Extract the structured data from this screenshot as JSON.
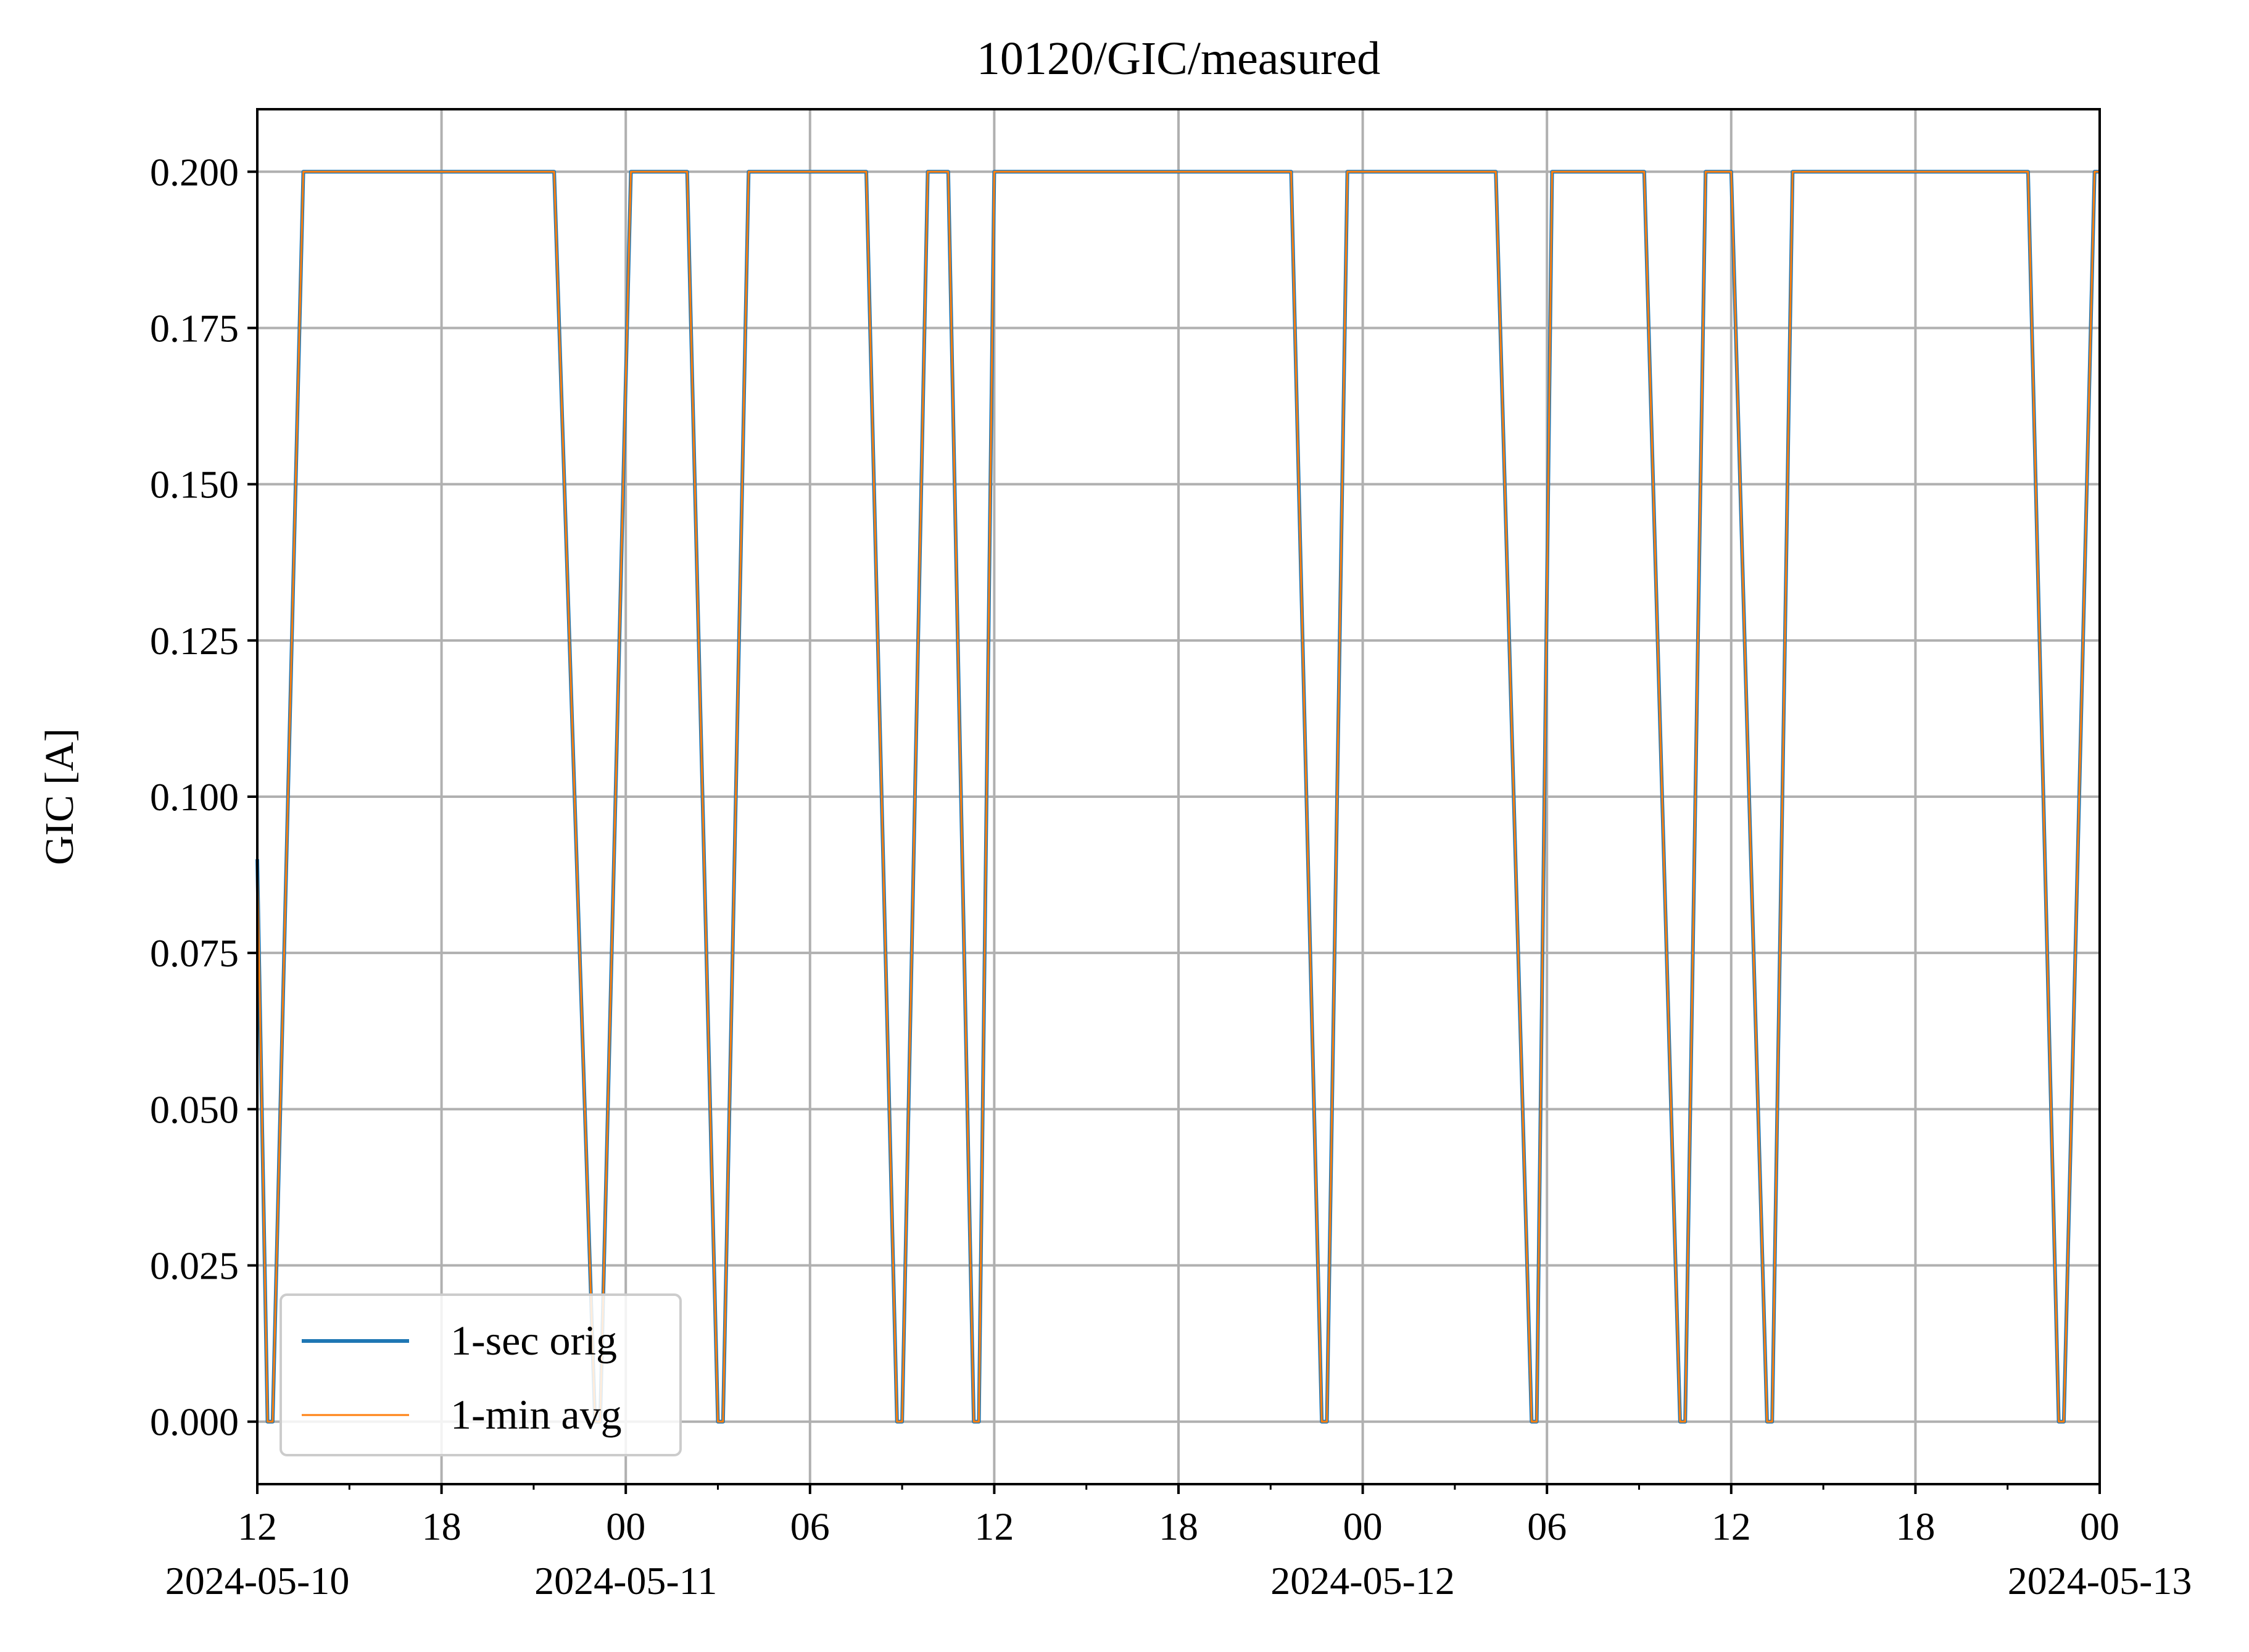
{
  "chart_data": {
    "type": "line",
    "title": "10120/GIC/measured",
    "xlabel": "",
    "ylabel": "GIC [A]",
    "x_range": [
      "2024-05-10T12:00",
      "2024-05-13T00:00"
    ],
    "ylim": [
      -0.01,
      0.21
    ],
    "grid": true,
    "legend_position": "lower-left",
    "y_ticks": [
      {
        "value": 0.0,
        "label": "0.000"
      },
      {
        "value": 0.025,
        "label": "0.025"
      },
      {
        "value": 0.05,
        "label": "0.050"
      },
      {
        "value": 0.075,
        "label": "0.075"
      },
      {
        "value": 0.1,
        "label": "0.100"
      },
      {
        "value": 0.125,
        "label": "0.125"
      },
      {
        "value": 0.15,
        "label": "0.150"
      },
      {
        "value": 0.175,
        "label": "0.175"
      },
      {
        "value": 0.2,
        "label": "0.200"
      }
    ],
    "x_ticks": [
      {
        "value": "2024-05-10T12:00",
        "label": "12",
        "date": "2024-05-10"
      },
      {
        "value": "2024-05-10T18:00",
        "label": "18",
        "date": ""
      },
      {
        "value": "2024-05-11T00:00",
        "label": "00",
        "date": "2024-05-11"
      },
      {
        "value": "2024-05-11T06:00",
        "label": "06",
        "date": ""
      },
      {
        "value": "2024-05-11T12:00",
        "label": "12",
        "date": ""
      },
      {
        "value": "2024-05-11T18:00",
        "label": "18",
        "date": ""
      },
      {
        "value": "2024-05-12T00:00",
        "label": "00",
        "date": "2024-05-12"
      },
      {
        "value": "2024-05-12T06:00",
        "label": "06",
        "date": ""
      },
      {
        "value": "2024-05-12T12:00",
        "label": "12",
        "date": ""
      },
      {
        "value": "2024-05-12T18:00",
        "label": "18",
        "date": ""
      },
      {
        "value": "2024-05-13T00:00",
        "label": "00",
        "date": "2024-05-13"
      }
    ],
    "minor_x_ticks": [
      "2024-05-10T15:00",
      "2024-05-10T21:00",
      "2024-05-11T03:00",
      "2024-05-11T09:00",
      "2024-05-11T15:00",
      "2024-05-11T21:00",
      "2024-05-12T03:00",
      "2024-05-12T09:00",
      "2024-05-12T15:00",
      "2024-05-12T21:00"
    ],
    "series": [
      {
        "name": "1-sec orig",
        "color": "#1f77b4",
        "x": [
          "2024-05-10T12:00",
          "2024-05-10T12:20",
          "2024-05-10T12:30",
          "2024-05-10T13:30",
          "2024-05-10T21:40",
          "2024-05-10T23:00",
          "2024-05-10T23:10",
          "2024-05-11T00:10",
          "2024-05-11T02:00",
          "2024-05-11T03:00",
          "2024-05-11T03:10",
          "2024-05-11T04:00",
          "2024-05-11T07:50",
          "2024-05-11T08:50",
          "2024-05-11T09:00",
          "2024-05-11T09:50",
          "2024-05-11T10:30",
          "2024-05-11T11:20",
          "2024-05-11T11:30",
          "2024-05-11T12:00",
          "2024-05-11T21:40",
          "2024-05-11T22:40",
          "2024-05-11T22:50",
          "2024-05-11T23:30",
          "2024-05-12T04:20",
          "2024-05-12T05:30",
          "2024-05-12T05:40",
          "2024-05-12T06:10",
          "2024-05-12T09:10",
          "2024-05-12T10:20",
          "2024-05-12T10:30",
          "2024-05-12T11:10",
          "2024-05-12T12:00",
          "2024-05-12T13:10",
          "2024-05-12T13:20",
          "2024-05-12T14:00",
          "2024-05-12T21:40",
          "2024-05-12T22:40",
          "2024-05-12T22:50",
          "2024-05-12T23:50",
          "2024-05-13T00:00"
        ],
        "values": [
          0.09,
          0.0,
          0.0,
          0.2,
          0.2,
          0.0,
          0.0,
          0.2,
          0.2,
          0.0,
          0.0,
          0.2,
          0.2,
          0.0,
          0.0,
          0.2,
          0.2,
          0.0,
          0.0,
          0.2,
          0.2,
          0.0,
          0.0,
          0.2,
          0.2,
          0.0,
          0.0,
          0.2,
          0.2,
          0.0,
          0.0,
          0.2,
          0.2,
          0.0,
          0.0,
          0.2,
          0.2,
          0.0,
          0.0,
          0.2,
          0.2
        ]
      },
      {
        "name": "1-min avg",
        "color": "#ff7f0e",
        "x": [
          "2024-05-10T12:00",
          "2024-05-10T12:20",
          "2024-05-10T12:30",
          "2024-05-10T13:30",
          "2024-05-10T21:40",
          "2024-05-10T23:00",
          "2024-05-10T23:10",
          "2024-05-11T00:10",
          "2024-05-11T02:00",
          "2024-05-11T03:00",
          "2024-05-11T03:10",
          "2024-05-11T04:00",
          "2024-05-11T07:50",
          "2024-05-11T08:50",
          "2024-05-11T09:00",
          "2024-05-11T09:50",
          "2024-05-11T10:30",
          "2024-05-11T11:20",
          "2024-05-11T11:30",
          "2024-05-11T12:00",
          "2024-05-11T21:40",
          "2024-05-11T22:40",
          "2024-05-11T22:50",
          "2024-05-11T23:30",
          "2024-05-12T04:20",
          "2024-05-12T05:30",
          "2024-05-12T05:40",
          "2024-05-12T06:10",
          "2024-05-12T09:10",
          "2024-05-12T10:20",
          "2024-05-12T10:30",
          "2024-05-12T11:10",
          "2024-05-12T12:00",
          "2024-05-12T13:10",
          "2024-05-12T13:20",
          "2024-05-12T14:00",
          "2024-05-12T21:40",
          "2024-05-12T22:40",
          "2024-05-12T22:50",
          "2024-05-12T23:50",
          "2024-05-13T00:00"
        ],
        "values": [
          0.09,
          0.0,
          0.0,
          0.2,
          0.2,
          0.0,
          0.0,
          0.2,
          0.2,
          0.0,
          0.0,
          0.2,
          0.2,
          0.0,
          0.0,
          0.2,
          0.2,
          0.0,
          0.0,
          0.2,
          0.2,
          0.0,
          0.0,
          0.2,
          0.2,
          0.0,
          0.0,
          0.2,
          0.2,
          0.0,
          0.0,
          0.2,
          0.2,
          0.0,
          0.0,
          0.2,
          0.2,
          0.0,
          0.0,
          0.2,
          0.2
        ]
      }
    ]
  }
}
